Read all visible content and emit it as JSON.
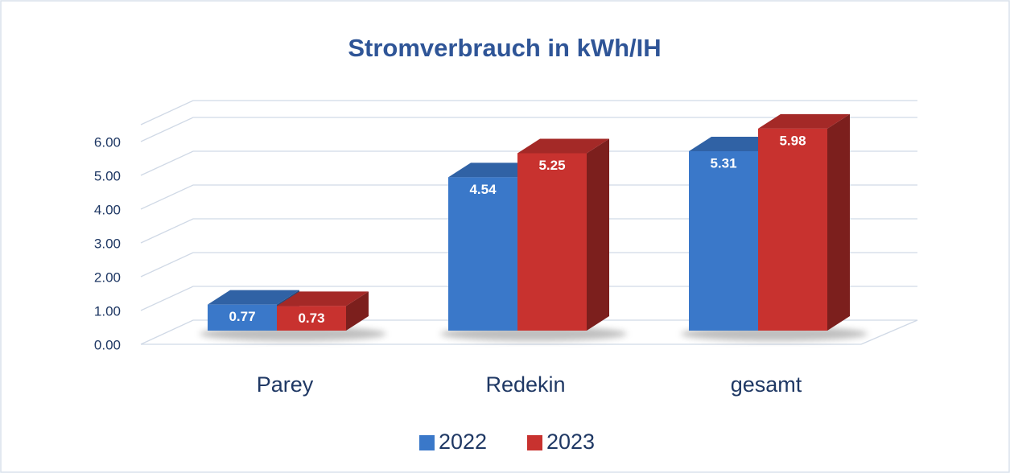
{
  "chart_data": {
    "type": "bar3d",
    "title": "Stromverbrauch in kWh/IH",
    "categories": [
      "Parey",
      "Redekin",
      "gesamt"
    ],
    "series": [
      {
        "name": "2022",
        "color": "#3a78c9",
        "values": [
          0.77,
          4.54,
          5.31
        ]
      },
      {
        "name": "2023",
        "color": "#c8322f",
        "values": [
          0.73,
          5.25,
          5.98
        ]
      }
    ],
    "ylim": [
      0,
      6.5
    ],
    "yticks": [
      {
        "value": 0,
        "label": "0.00"
      },
      {
        "value": 1,
        "label": "1.00"
      },
      {
        "value": 2,
        "label": "2.00"
      },
      {
        "value": 3,
        "label": "3.00"
      },
      {
        "value": 4,
        "label": "4.00"
      },
      {
        "value": 5,
        "label": "5.00"
      },
      {
        "value": 6,
        "label": "6.00"
      }
    ],
    "grid": true,
    "legend": "bottom"
  }
}
